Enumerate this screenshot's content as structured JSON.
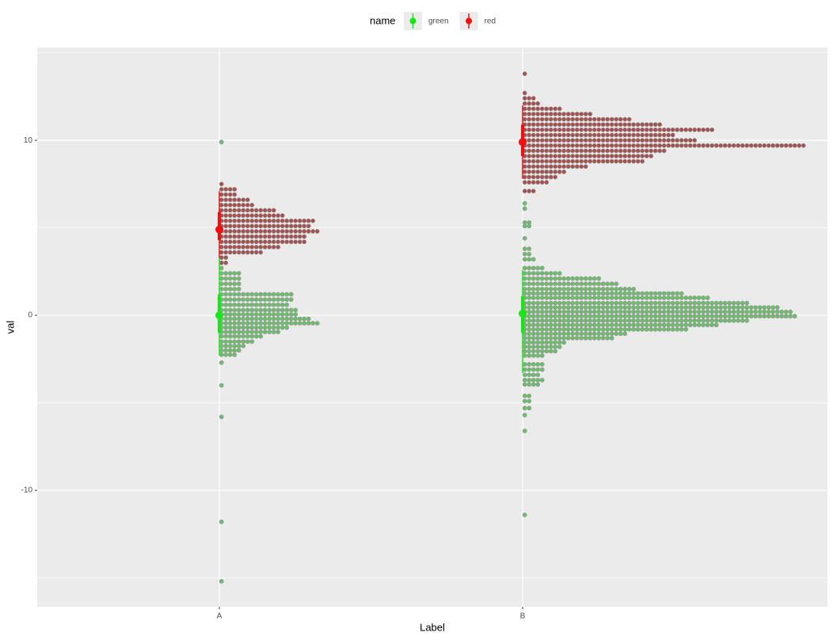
{
  "chart_data": {
    "type": "dotplot",
    "x_label": "Label",
    "y_label": "val",
    "legend_title": "name",
    "categories": [
      "A",
      "B"
    ],
    "ylim": [
      -16.65,
      15.3
    ],
    "yticks": [
      -10,
      0,
      10
    ],
    "yminor": [
      -15,
      -5,
      5,
      15
    ],
    "grid": true,
    "legend_position": "top",
    "series": [
      {
        "name": "green",
        "color": "#19e619",
        "dot_color": "#6cbc6c",
        "dot_y": [
          [
            9.9,
            3.3,
            3.0,
            2.7,
            2.4,
            2.1,
            1.8,
            1.5,
            1.2,
            0.9,
            0.6,
            0.3,
            0.05,
            -0.2,
            -0.45,
            -0.7,
            -0.95,
            -1.2,
            -1.5,
            -1.75,
            -2.0,
            -2.25,
            -2.7,
            -4.0,
            -5.8,
            -11.8,
            -15.2
          ],
          [
            6.4,
            6.1,
            5.3,
            5.1,
            4.4,
            3.8,
            3.5,
            3.2,
            2.7,
            2.4,
            2.1,
            1.8,
            1.5,
            1.25,
            1.0,
            0.7,
            0.45,
            0.2,
            -0.05,
            -0.3,
            -0.55,
            -0.8,
            -1.05,
            -1.3,
            -1.55,
            -1.8,
            -2.05,
            -2.3,
            -2.8,
            -3.1,
            -3.4,
            -3.7,
            -3.95,
            -4.6,
            -4.9,
            -5.3,
            -5.7,
            -6.6,
            -11.4
          ]
        ],
        "dot_counts": [
          [
            1,
            1,
            1,
            1,
            5,
            5,
            5,
            5,
            17,
            17,
            16,
            18,
            18,
            21,
            23,
            16,
            14,
            10,
            8,
            6,
            5,
            4,
            1,
            1,
            1,
            1,
            1
          ],
          [
            1,
            1,
            2,
            2,
            1,
            2,
            2,
            3,
            5,
            9,
            18,
            22,
            26,
            37,
            43,
            52,
            59,
            62,
            63,
            52,
            45,
            38,
            24,
            21,
            10,
            9,
            8,
            5,
            5,
            5,
            4,
            5,
            4,
            2,
            2,
            2,
            1,
            1,
            1
          ]
        ],
        "mean": [
          0,
          0.1
        ],
        "inner": [
          [
            -1,
            1.2
          ],
          [
            -1,
            1.1
          ]
        ],
        "outer": [
          [
            -2.3,
            3.3
          ],
          [
            -3.3,
            2.6
          ]
        ]
      },
      {
        "name": "red",
        "color": "#f01010",
        "dot_color": "#a5504f",
        "dot_y": [
          [
            7.5,
            7.2,
            6.9,
            6.6,
            6.3,
            6.0,
            5.7,
            5.4,
            5.1,
            4.8,
            4.5,
            4.2,
            3.9,
            3.6,
            3.3,
            3.0
          ],
          [
            13.8,
            12.7,
            12.4,
            12.1,
            11.8,
            11.5,
            11.2,
            10.9,
            10.6,
            10.3,
            10.0,
            9.7,
            9.4,
            9.1,
            8.8,
            8.5,
            8.2,
            7.9,
            7.6,
            7.1
          ]
        ],
        "dot_counts": [
          [
            1,
            4,
            4,
            7,
            8,
            13,
            15,
            22,
            21,
            23,
            20,
            20,
            14,
            10,
            2,
            2
          ],
          [
            1,
            1,
            3,
            4,
            9,
            16,
            25,
            32,
            44,
            35,
            40,
            65,
            33,
            30,
            28,
            15,
            10,
            8,
            6,
            3
          ]
        ],
        "mean": [
          4.9,
          9.9
        ],
        "inner": [
          [
            4.3,
            5.9
          ],
          [
            9.1,
            10.9
          ]
        ],
        "outer": [
          [
            3.3,
            7.1
          ],
          [
            7.8,
            12.0
          ]
        ]
      }
    ]
  }
}
